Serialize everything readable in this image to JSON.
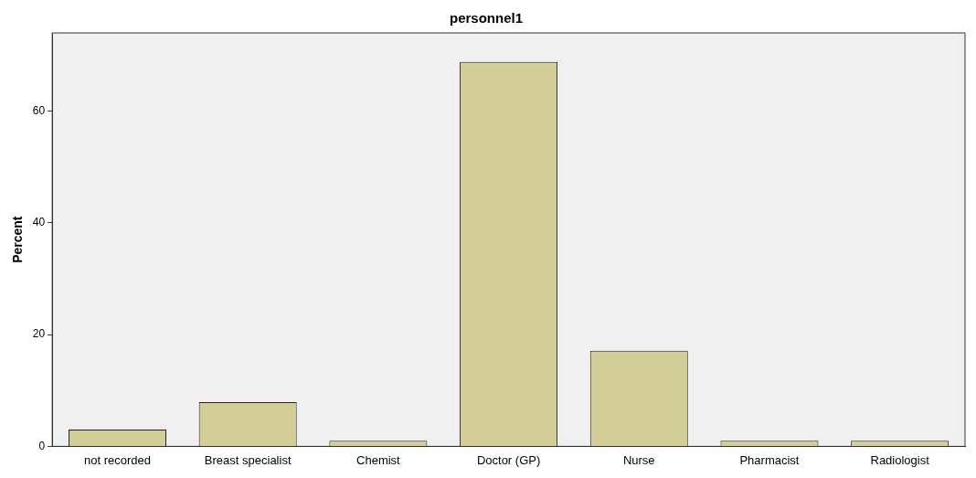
{
  "chart_data": {
    "type": "bar",
    "title": "personnel1",
    "ylabel": "Percent",
    "categories": [
      "not recorded",
      "Breast specialist",
      "Chemist",
      "Doctor (GP)",
      "Nurse",
      "Pharmacist",
      "Radiologist"
    ],
    "values": [
      3.0,
      7.9,
      1.0,
      68.8,
      17.1,
      1.0,
      1.0
    ],
    "color": "#d3ce97",
    "ylim": [
      0,
      74
    ],
    "yticks": [
      0,
      20,
      40,
      60
    ],
    "grid": false,
    "legend": false
  }
}
